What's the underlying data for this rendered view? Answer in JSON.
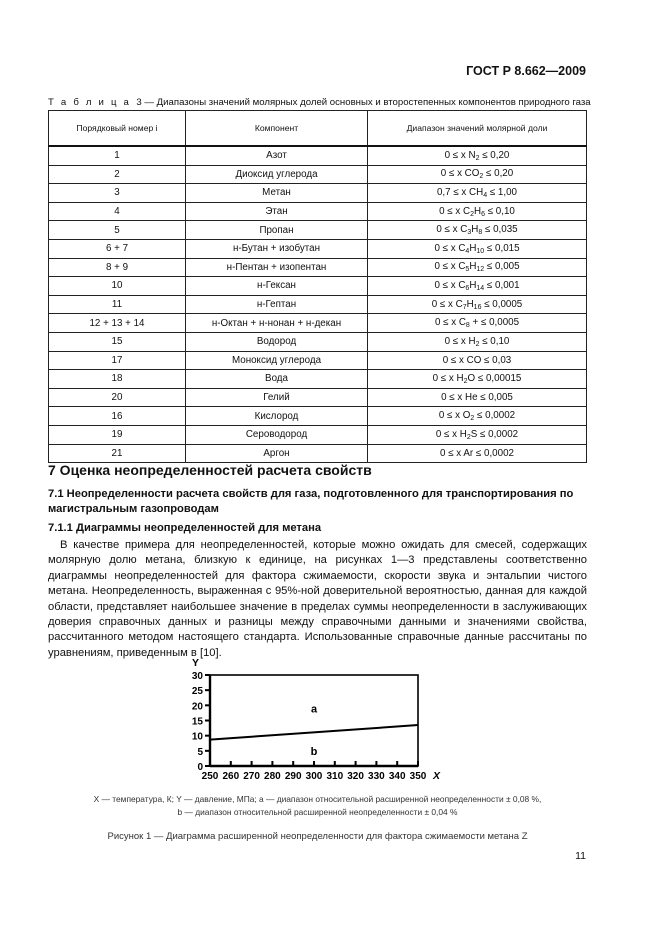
{
  "header": {
    "doc_code": "ГОСТ Р 8.662—2009"
  },
  "table": {
    "caption_label": "Т а б л и ц а",
    "caption_text": "3 — Диапазоны значений молярных долей основных и второстепенных компонентов природного газа",
    "columns": [
      "Порядковый номер i",
      "Компонент",
      "Диапазон значений молярной доли"
    ],
    "rows": [
      {
        "num": "1",
        "component": "Азот",
        "range": [
          "0 ≤ x N",
          {
            "sub": "2"
          },
          " ≤ 0,20"
        ]
      },
      {
        "num": "2",
        "component": "Диоксид углерода",
        "range": [
          "0 ≤ x CO",
          {
            "sub": "2"
          },
          " ≤ 0,20"
        ]
      },
      {
        "num": "3",
        "component": "Метан",
        "range": [
          "0,7 ≤ x CH",
          {
            "sub": "4"
          },
          " ≤ 1,00"
        ]
      },
      {
        "num": "4",
        "component": "Этан",
        "range": [
          "0 ≤ x C",
          {
            "sub": "2"
          },
          "H",
          {
            "sub": "6"
          },
          " ≤ 0,10"
        ]
      },
      {
        "num": "5",
        "component": "Пропан",
        "range": [
          "0 ≤ x C",
          {
            "sub": "3"
          },
          "H",
          {
            "sub": "8"
          },
          " ≤ 0,035"
        ]
      },
      {
        "num": "6 + 7",
        "component": "н-Бутан + изобутан",
        "range": [
          "0 ≤ x C",
          {
            "sub": "4"
          },
          "H",
          {
            "sub": "10"
          },
          " ≤ 0,015"
        ]
      },
      {
        "num": "8 + 9",
        "component": "н-Пентан + изопентан",
        "range": [
          "0 ≤ x C",
          {
            "sub": "5"
          },
          "H",
          {
            "sub": "12"
          },
          " ≤ 0,005"
        ]
      },
      {
        "num": "10",
        "component": "н-Гексан",
        "range": [
          "0 ≤ x C",
          {
            "sub": "6"
          },
          "H",
          {
            "sub": "14"
          },
          " ≤ 0,001"
        ]
      },
      {
        "num": "11",
        "component": "н-Гептан",
        "range": [
          "0 ≤ x C",
          {
            "sub": "7"
          },
          "H",
          {
            "sub": "16"
          },
          " ≤ 0,0005"
        ]
      },
      {
        "num": "12 + 13 + 14",
        "component": "н-Октан + н-нонан + н-декан",
        "range": [
          "0 ≤ x C",
          {
            "sub": "8"
          },
          " + ≤ 0,0005"
        ]
      },
      {
        "num": "15",
        "component": "Водород",
        "range": [
          "0 ≤ x H",
          {
            "sub": "2"
          },
          " ≤ 0,10"
        ]
      },
      {
        "num": "17",
        "component": "Моноксид углерода",
        "range": [
          "0 ≤ x CO ≤ 0,03"
        ]
      },
      {
        "num": "18",
        "component": "Вода",
        "range": [
          "0 ≤ x H",
          {
            "sub": "2"
          },
          "O ≤ 0,00015"
        ]
      },
      {
        "num": "20",
        "component": "Гелий",
        "range": [
          "0 ≤ x He ≤ 0,005"
        ]
      },
      {
        "num": "16",
        "component": "Кислород",
        "range": [
          "0 ≤ x O",
          {
            "sub": "2"
          },
          " ≤ 0,0002"
        ]
      },
      {
        "num": "19",
        "component": "Сероводород",
        "range": [
          "0 ≤ x H",
          {
            "sub": "2"
          },
          "S ≤ 0,0002"
        ]
      },
      {
        "num": "21",
        "component": "Аргон",
        "range": [
          "0 ≤ x Ar ≤ 0,0002"
        ]
      }
    ]
  },
  "section7": {
    "title": "7  Оценка неопределенностей расчета свойств",
    "s71": "7.1  Неопределенности расчета свойств для газа, подготовленного для транспортирования по магистральным газопроводам",
    "s711": "7.1.1  Диаграммы неопределенностей для метана",
    "paragraph": "В качестве примера для неопределенностей, которые можно ожидать для смесей, содержащих молярную долю метана, близкую к единице, на рисунках 1—3 представлены соответственно диаграммы неопределенностей для фактора сжимаемости, скорости звука и энтальпии чистого метана. Неопределенность, выраженная с 95%-ной доверительной вероятностью, данная для каждой области, представляет наибольшее значение в пределах суммы неопределенности в заслуживающих доверия справочных данных и разницы между справочными данными и значениями свойства, рассчитанного методом настоящего стандарта. Использованные справочные данные рассчитаны по уравнениям, приведенным в [10]."
  },
  "chart_data": {
    "type": "line",
    "xlabel": "X",
    "ylabel": "Y",
    "xlim": [
      250,
      350
    ],
    "ylim": [
      0,
      30
    ],
    "xticks": [
      250,
      260,
      270,
      280,
      290,
      300,
      310,
      320,
      330,
      340,
      350
    ],
    "yticks": [
      0,
      5,
      10,
      15,
      20,
      25,
      30
    ],
    "grid": false,
    "series": [
      {
        "x": [
          250,
          350
        ],
        "y": [
          8.7,
          13.5
        ]
      }
    ],
    "annotations": [
      {
        "text": "a",
        "x": 300,
        "y": 19
      },
      {
        "text": "b",
        "x": 300,
        "y": 5
      }
    ],
    "color": "#000000"
  },
  "figure": {
    "legend_line1": "X — температура, К; Y — давление, МПа; a — диапазон относительной расширенной неопределенности ± 0,08 %,",
    "legend_line2": "b — диапазон относительной расширенной неопределенности ± 0,04 %",
    "title": "Рисунок 1 —  Диаграмма расширенной неопределенности для фактора сжимаемости метана Z"
  },
  "page_number": "11"
}
